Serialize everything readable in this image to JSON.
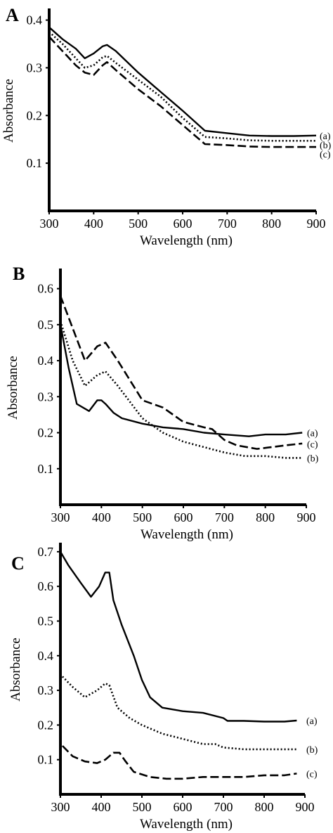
{
  "chart_data": [
    {
      "panel": "A",
      "type": "line",
      "xlabel": "Wavelength (nm)",
      "ylabel": "Absorbance",
      "xlim": [
        300,
        900
      ],
      "ylim": [
        0,
        0.42
      ],
      "xticks": [
        300,
        400,
        500,
        600,
        700,
        800,
        900
      ],
      "yticks": [
        0.1,
        0.2,
        0.3,
        0.4
      ],
      "series": [
        {
          "name": "(a)",
          "style": "solid",
          "x": [
            300,
            330,
            360,
            380,
            400,
            420,
            430,
            450,
            500,
            550,
            600,
            650,
            700,
            750,
            800,
            850,
            900
          ],
          "y": [
            0.385,
            0.36,
            0.34,
            0.32,
            0.33,
            0.345,
            0.348,
            0.335,
            0.29,
            0.25,
            0.21,
            0.168,
            0.163,
            0.158,
            0.157,
            0.157,
            0.158
          ]
        },
        {
          "name": "(b)",
          "style": "dotted",
          "x": [
            300,
            330,
            360,
            380,
            400,
            420,
            430,
            450,
            500,
            550,
            600,
            650,
            700,
            750,
            800,
            850,
            900
          ],
          "y": [
            0.375,
            0.35,
            0.32,
            0.3,
            0.305,
            0.322,
            0.325,
            0.31,
            0.275,
            0.24,
            0.195,
            0.155,
            0.152,
            0.148,
            0.147,
            0.147,
            0.147
          ]
        },
        {
          "name": "(c)",
          "style": "dashed",
          "x": [
            300,
            330,
            360,
            380,
            400,
            420,
            430,
            450,
            500,
            550,
            600,
            650,
            700,
            750,
            800,
            850,
            900
          ],
          "y": [
            0.365,
            0.335,
            0.305,
            0.29,
            0.285,
            0.305,
            0.312,
            0.295,
            0.255,
            0.22,
            0.18,
            0.14,
            0.138,
            0.135,
            0.134,
            0.134,
            0.134
          ]
        }
      ]
    },
    {
      "panel": "B",
      "type": "line",
      "xlabel": "Wavelength (nm)",
      "ylabel": "Absorbance",
      "xlim": [
        300,
        900
      ],
      "ylim": [
        0,
        0.65
      ],
      "xticks": [
        300,
        400,
        500,
        600,
        700,
        800,
        900
      ],
      "yticks": [
        0.1,
        0.2,
        0.3,
        0.4,
        0.5,
        0.6
      ],
      "series": [
        {
          "name": "(a)",
          "style": "solid",
          "x": [
            300,
            320,
            340,
            370,
            390,
            400,
            410,
            430,
            450,
            500,
            550,
            600,
            650,
            700,
            760,
            800,
            850,
            890
          ],
          "y": [
            0.5,
            0.38,
            0.28,
            0.26,
            0.29,
            0.29,
            0.28,
            0.255,
            0.24,
            0.225,
            0.215,
            0.21,
            0.2,
            0.195,
            0.19,
            0.195,
            0.195,
            0.2
          ]
        },
        {
          "name": "(c)",
          "style": "dashed",
          "x": [
            300,
            330,
            360,
            390,
            410,
            440,
            500,
            550,
            600,
            650,
            670,
            700,
            730,
            780,
            850,
            890
          ],
          "y": [
            0.58,
            0.49,
            0.4,
            0.44,
            0.45,
            0.4,
            0.29,
            0.27,
            0.23,
            0.215,
            0.21,
            0.18,
            0.165,
            0.155,
            0.165,
            0.17
          ]
        },
        {
          "name": "(b)",
          "style": "dotted",
          "x": [
            300,
            330,
            360,
            390,
            410,
            440,
            500,
            550,
            600,
            650,
            700,
            750,
            800,
            850,
            890
          ],
          "y": [
            0.51,
            0.4,
            0.33,
            0.36,
            0.37,
            0.33,
            0.24,
            0.2,
            0.175,
            0.16,
            0.145,
            0.135,
            0.135,
            0.13,
            0.13
          ]
        }
      ]
    },
    {
      "panel": "C",
      "type": "line",
      "xlabel": "Wavelength (nm)",
      "ylabel": "Absorbance",
      "xlim": [
        300,
        900
      ],
      "ylim": [
        0,
        0.72
      ],
      "xticks": [
        300,
        400,
        500,
        600,
        700,
        800,
        900
      ],
      "yticks": [
        0.1,
        0.2,
        0.3,
        0.4,
        0.5,
        0.6,
        0.7
      ],
      "series": [
        {
          "name": "(a)",
          "style": "solid",
          "x": [
            300,
            320,
            350,
            375,
            395,
            410,
            420,
            430,
            450,
            480,
            500,
            520,
            550,
            600,
            650,
            700,
            710,
            750,
            800,
            850,
            880
          ],
          "y": [
            0.7,
            0.66,
            0.61,
            0.57,
            0.6,
            0.64,
            0.64,
            0.56,
            0.49,
            0.4,
            0.33,
            0.28,
            0.25,
            0.24,
            0.235,
            0.22,
            0.212,
            0.212,
            0.21,
            0.21,
            0.213
          ]
        },
        {
          "name": "(b)",
          "style": "dotted",
          "x": [
            305,
            330,
            360,
            390,
            410,
            420,
            440,
            470,
            500,
            550,
            600,
            650,
            680,
            700,
            750,
            800,
            850,
            880
          ],
          "y": [
            0.34,
            0.31,
            0.28,
            0.3,
            0.32,
            0.315,
            0.25,
            0.22,
            0.2,
            0.175,
            0.16,
            0.145,
            0.145,
            0.135,
            0.13,
            0.13,
            0.13,
            0.13
          ]
        },
        {
          "name": "(c)",
          "style": "dashed",
          "x": [
            305,
            330,
            360,
            390,
            410,
            430,
            445,
            460,
            480,
            520,
            560,
            600,
            650,
            700,
            750,
            800,
            850,
            880
          ],
          "y": [
            0.14,
            0.11,
            0.095,
            0.09,
            0.1,
            0.12,
            0.12,
            0.095,
            0.065,
            0.05,
            0.045,
            0.045,
            0.05,
            0.05,
            0.05,
            0.055,
            0.055,
            0.06
          ]
        }
      ]
    }
  ]
}
